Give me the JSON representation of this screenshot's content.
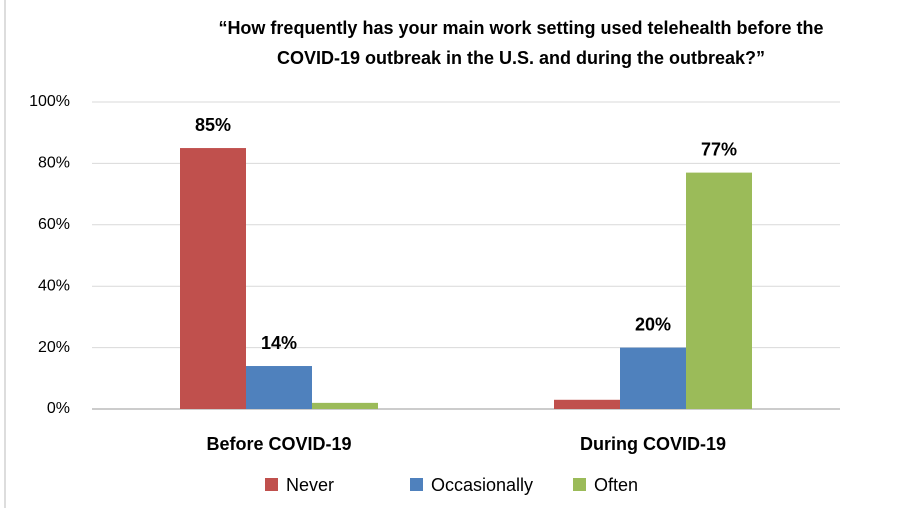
{
  "chart_data": {
    "type": "bar",
    "title": [
      "“How frequently has your main work setting used telehealth before the",
      "COVID-19 outbreak in the U.S. and during the outbreak?”"
    ],
    "categories": [
      "Before COVID-19",
      "During COVID-19"
    ],
    "series": [
      {
        "name": "Never",
        "color": "#c0504d",
        "values": [
          85,
          3
        ],
        "value_labels": [
          "85%",
          null
        ]
      },
      {
        "name": "Occasionally",
        "color": "#4f81bd",
        "values": [
          14,
          20
        ],
        "value_labels": [
          "14%",
          "20%"
        ]
      },
      {
        "name": "Often",
        "color": "#9bbb59",
        "values": [
          2,
          77
        ],
        "value_labels": [
          null,
          "77%"
        ]
      }
    ],
    "ylim": [
      0,
      100
    ],
    "yticks": [
      {
        "value": 0,
        "label": "0%"
      },
      {
        "value": 20,
        "label": "20%"
      },
      {
        "value": 40,
        "label": "40%"
      },
      {
        "value": 60,
        "label": "60%"
      },
      {
        "value": 80,
        "label": "80%"
      },
      {
        "value": 100,
        "label": "100%"
      }
    ],
    "grid": true
  }
}
